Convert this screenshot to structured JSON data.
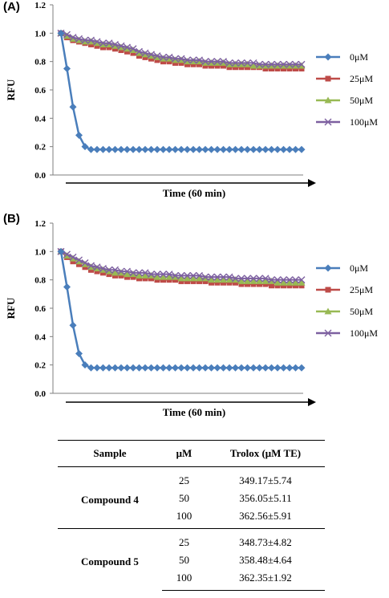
{
  "panels": [
    {
      "label": "(A)"
    },
    {
      "label": "(B)"
    }
  ],
  "chart_data": [
    {
      "type": "line",
      "title": "",
      "xlabel": "Time (60 min)",
      "ylabel": "RFU",
      "ylim": [
        0,
        1.2
      ],
      "yticks": [
        "0.0",
        "0.2",
        "0.4",
        "0.6",
        "0.8",
        "1.0",
        "1.2"
      ],
      "grid": false,
      "legend_position": "right",
      "x": [
        0,
        1,
        2,
        3,
        4,
        5,
        6,
        7,
        8,
        9,
        10,
        11,
        12,
        13,
        14,
        15,
        16,
        17,
        18,
        19,
        20,
        21,
        22,
        23,
        24,
        25,
        26,
        27,
        28,
        29,
        30,
        31,
        32,
        33,
        34,
        35,
        36,
        37,
        38,
        39,
        40
      ],
      "series": [
        {
          "name": "0μM",
          "color": "#4a7ebb",
          "marker": "diamond",
          "values": [
            1.0,
            0.75,
            0.48,
            0.28,
            0.2,
            0.18,
            0.18,
            0.18,
            0.18,
            0.18,
            0.18,
            0.18,
            0.18,
            0.18,
            0.18,
            0.18,
            0.18,
            0.18,
            0.18,
            0.18,
            0.18,
            0.18,
            0.18,
            0.18,
            0.18,
            0.18,
            0.18,
            0.18,
            0.18,
            0.18,
            0.18,
            0.18,
            0.18,
            0.18,
            0.18,
            0.18,
            0.18,
            0.18,
            0.18,
            0.18,
            0.18
          ]
        },
        {
          "name": "25μM",
          "color": "#be4b48",
          "marker": "square",
          "values": [
            1.0,
            0.97,
            0.95,
            0.94,
            0.93,
            0.92,
            0.91,
            0.9,
            0.9,
            0.89,
            0.88,
            0.87,
            0.86,
            0.84,
            0.83,
            0.82,
            0.81,
            0.8,
            0.8,
            0.79,
            0.79,
            0.78,
            0.78,
            0.78,
            0.77,
            0.77,
            0.77,
            0.77,
            0.76,
            0.76,
            0.76,
            0.76,
            0.76,
            0.76,
            0.75,
            0.75,
            0.75,
            0.75,
            0.75,
            0.75,
            0.75
          ]
        },
        {
          "name": "50μM",
          "color": "#98b954",
          "marker": "triangle",
          "values": [
            1.0,
            0.98,
            0.96,
            0.95,
            0.94,
            0.94,
            0.93,
            0.92,
            0.92,
            0.91,
            0.9,
            0.89,
            0.88,
            0.86,
            0.85,
            0.84,
            0.83,
            0.82,
            0.82,
            0.81,
            0.81,
            0.8,
            0.8,
            0.8,
            0.79,
            0.79,
            0.79,
            0.79,
            0.78,
            0.78,
            0.78,
            0.78,
            0.77,
            0.77,
            0.77,
            0.77,
            0.77,
            0.77,
            0.77,
            0.77,
            0.77
          ]
        },
        {
          "name": "100μM",
          "color": "#7d60a0",
          "marker": "cross",
          "values": [
            1.0,
            0.99,
            0.97,
            0.96,
            0.95,
            0.95,
            0.94,
            0.93,
            0.93,
            0.92,
            0.91,
            0.9,
            0.89,
            0.87,
            0.86,
            0.85,
            0.84,
            0.83,
            0.83,
            0.82,
            0.82,
            0.81,
            0.81,
            0.81,
            0.8,
            0.8,
            0.8,
            0.8,
            0.79,
            0.79,
            0.79,
            0.79,
            0.79,
            0.78,
            0.78,
            0.78,
            0.78,
            0.78,
            0.78,
            0.78,
            0.78
          ]
        }
      ]
    },
    {
      "type": "line",
      "title": "",
      "xlabel": "Time (60 min)",
      "ylabel": "RFU",
      "ylim": [
        0,
        1.2
      ],
      "yticks": [
        "0.0",
        "0.2",
        "0.4",
        "0.6",
        "0.8",
        "1.0",
        "1.2"
      ],
      "grid": false,
      "legend_position": "right",
      "x": [
        0,
        1,
        2,
        3,
        4,
        5,
        6,
        7,
        8,
        9,
        10,
        11,
        12,
        13,
        14,
        15,
        16,
        17,
        18,
        19,
        20,
        21,
        22,
        23,
        24,
        25,
        26,
        27,
        28,
        29,
        30,
        31,
        32,
        33,
        34,
        35,
        36,
        37,
        38,
        39,
        40
      ],
      "series": [
        {
          "name": "0μM",
          "color": "#4a7ebb",
          "marker": "diamond",
          "values": [
            1.0,
            0.75,
            0.48,
            0.28,
            0.2,
            0.18,
            0.18,
            0.18,
            0.18,
            0.18,
            0.18,
            0.18,
            0.18,
            0.18,
            0.18,
            0.18,
            0.18,
            0.18,
            0.18,
            0.18,
            0.18,
            0.18,
            0.18,
            0.18,
            0.18,
            0.18,
            0.18,
            0.18,
            0.18,
            0.18,
            0.18,
            0.18,
            0.18,
            0.18,
            0.18,
            0.18,
            0.18,
            0.18,
            0.18,
            0.18,
            0.18
          ]
        },
        {
          "name": "25μM",
          "color": "#be4b48",
          "marker": "square",
          "values": [
            1.0,
            0.96,
            0.93,
            0.91,
            0.89,
            0.87,
            0.86,
            0.85,
            0.84,
            0.83,
            0.83,
            0.82,
            0.82,
            0.81,
            0.81,
            0.81,
            0.8,
            0.8,
            0.8,
            0.8,
            0.79,
            0.79,
            0.79,
            0.79,
            0.79,
            0.78,
            0.78,
            0.78,
            0.78,
            0.78,
            0.77,
            0.77,
            0.77,
            0.77,
            0.77,
            0.76,
            0.76,
            0.76,
            0.76,
            0.76,
            0.76
          ]
        },
        {
          "name": "50μM",
          "color": "#98b954",
          "marker": "triangle",
          "values": [
            1.0,
            0.97,
            0.95,
            0.93,
            0.91,
            0.89,
            0.88,
            0.87,
            0.86,
            0.85,
            0.85,
            0.84,
            0.84,
            0.83,
            0.83,
            0.83,
            0.82,
            0.82,
            0.82,
            0.82,
            0.81,
            0.81,
            0.81,
            0.81,
            0.81,
            0.8,
            0.8,
            0.8,
            0.8,
            0.8,
            0.79,
            0.79,
            0.79,
            0.79,
            0.79,
            0.79,
            0.78,
            0.78,
            0.78,
            0.78,
            0.78
          ]
        },
        {
          "name": "100μM",
          "color": "#7d60a0",
          "marker": "cross",
          "values": [
            1.0,
            0.98,
            0.96,
            0.94,
            0.92,
            0.9,
            0.89,
            0.88,
            0.87,
            0.87,
            0.86,
            0.86,
            0.85,
            0.85,
            0.85,
            0.84,
            0.84,
            0.84,
            0.84,
            0.83,
            0.83,
            0.83,
            0.83,
            0.83,
            0.82,
            0.82,
            0.82,
            0.82,
            0.82,
            0.81,
            0.81,
            0.81,
            0.81,
            0.81,
            0.81,
            0.8,
            0.8,
            0.8,
            0.8,
            0.8,
            0.8
          ]
        }
      ]
    }
  ],
  "table": {
    "headers": [
      "Sample",
      "μM",
      "Trolox (μM TE)"
    ],
    "groups": [
      {
        "sample": "Compound 4",
        "rows": [
          {
            "um": "25",
            "trolox": "349.17±5.74"
          },
          {
            "um": "50",
            "trolox": "356.05±5.11"
          },
          {
            "um": "100",
            "trolox": "362.56±5.91"
          }
        ]
      },
      {
        "sample": "Compound 5",
        "rows": [
          {
            "um": "25",
            "trolox": "348.73±4.82"
          },
          {
            "um": "50",
            "trolox": "358.48±4.64"
          },
          {
            "um": "100",
            "trolox": "362.35±1.92"
          }
        ]
      }
    ]
  }
}
